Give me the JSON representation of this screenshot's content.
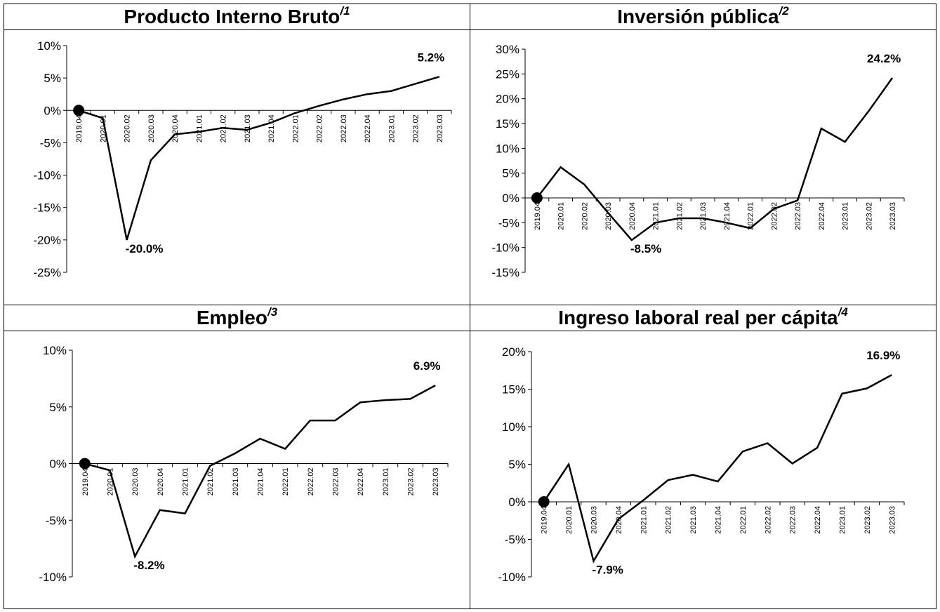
{
  "charts": [
    {
      "title": "Producto Interno Bruto",
      "title_sup": "/1",
      "chart_data": {
        "type": "line",
        "x": [
          "2019.04",
          "2020.01",
          "2020.02",
          "2020.03",
          "2020.04",
          "2021.01",
          "2021.02",
          "2021.03",
          "2021.04",
          "2022.01",
          "2022.02",
          "2022.03",
          "2022.04",
          "2023.01",
          "2023.02",
          "2023.03"
        ],
        "series": [
          {
            "values": [
              0,
              -1.2,
              -20.0,
              -7.7,
              -3.7,
              -3.3,
              -2.7,
              -3.0,
              -1.9,
              -0.4,
              0.7,
              1.7,
              2.5,
              3.0,
              4.1,
              5.2
            ]
          }
        ],
        "ylim": [
          -25,
          10
        ],
        "yticks": [
          10,
          5,
          0,
          -5,
          -10,
          -15,
          -20,
          -25
        ],
        "ytick_labels": [
          "10%",
          "5%",
          "0%",
          "-5%",
          "-10%",
          "-15%",
          "-20%",
          "-25%"
        ],
        "annotations": [
          {
            "text": "-20.0%",
            "index": 2,
            "pos": "below"
          },
          {
            "text": "5.2%",
            "index": 15,
            "pos": "above"
          }
        ],
        "marker_index": 0,
        "grid": false
      }
    },
    {
      "title": "Inversión pública",
      "title_sup": "/2",
      "chart_data": {
        "type": "line",
        "x": [
          "2019.04",
          "2020.01",
          "2020.02",
          "2020.03",
          "2020.04",
          "2021.01",
          "2021.02",
          "2021.03",
          "2021.04",
          "2022.01",
          "2022.02",
          "2022.03",
          "2022.04",
          "2023.01",
          "2023.02",
          "2023.03"
        ],
        "series": [
          {
            "values": [
              0,
              6.2,
              2.7,
              -3.0,
              -8.5,
              -5.0,
              -4.1,
              -4.1,
              -5.0,
              -6.1,
              -2.2,
              -0.5,
              14.0,
              11.3,
              17.5,
              24.2
            ]
          }
        ],
        "ylim": [
          -15,
          30
        ],
        "yticks": [
          30,
          25,
          20,
          15,
          10,
          5,
          0,
          -5,
          -10,
          -15
        ],
        "ytick_labels": [
          "30%",
          "25%",
          "20%",
          "15%",
          "10%",
          "5%",
          "0%",
          "-5%",
          "-10%",
          "-15%"
        ],
        "annotations": [
          {
            "text": "-8.5%",
            "index": 4,
            "pos": "below"
          },
          {
            "text": "24.2%",
            "index": 15,
            "pos": "above"
          }
        ],
        "marker_index": 0,
        "grid": false
      }
    },
    {
      "title": "Empleo",
      "title_sup": "/3",
      "chart_data": {
        "type": "line",
        "x": [
          "2019.04",
          "2020.01",
          "2020.03",
          "2020.04",
          "2021.01",
          "2021.02",
          "2021.03",
          "2021.04",
          "2022.01",
          "2022.02",
          "2022.03",
          "2022.04",
          "2023.01",
          "2023.02",
          "2023.03"
        ],
        "series": [
          {
            "values": [
              0,
              -0.6,
              -8.2,
              -4.1,
              -4.4,
              -0.2,
              0.9,
              2.2,
              1.3,
              3.8,
              3.8,
              5.4,
              5.6,
              5.7,
              6.9
            ]
          }
        ],
        "ylim": [
          -10,
          10
        ],
        "yticks": [
          10,
          5,
          0,
          -5,
          -10
        ],
        "ytick_labels": [
          "10%",
          "5%",
          "0%",
          "-5%",
          "-10%"
        ],
        "annotations": [
          {
            "text": "-8.2%",
            "index": 2,
            "pos": "below"
          },
          {
            "text": "6.9%",
            "index": 14,
            "pos": "above"
          }
        ],
        "marker_index": 0,
        "grid": false
      }
    },
    {
      "title": "Ingreso laboral real per cápita",
      "title_sup": "/4",
      "chart_data": {
        "type": "line",
        "x": [
          "2019.04",
          "2020.01",
          "2020.03",
          "2020.04",
          "2021.01",
          "2021.02",
          "2021.03",
          "2021.04",
          "2022.01",
          "2022.02",
          "2022.03",
          "2022.04",
          "2023.01",
          "2023.02",
          "2023.03"
        ],
        "series": [
          {
            "values": [
              0,
              5.0,
              -7.9,
              -2.3,
              0.2,
              2.9,
              3.6,
              2.7,
              6.7,
              7.8,
              5.1,
              7.2,
              14.4,
              15.1,
              16.9
            ]
          }
        ],
        "ylim": [
          -10,
          20
        ],
        "yticks": [
          20,
          15,
          10,
          5,
          0,
          -5,
          -10
        ],
        "ytick_labels": [
          "20%",
          "15%",
          "10%",
          "5%",
          "0%",
          "-5%",
          "-10%"
        ],
        "annotations": [
          {
            "text": "-7.9%",
            "index": 2,
            "pos": "below"
          },
          {
            "text": "16.9%",
            "index": 14,
            "pos": "above"
          }
        ],
        "marker_index": 0,
        "grid": false
      }
    }
  ]
}
